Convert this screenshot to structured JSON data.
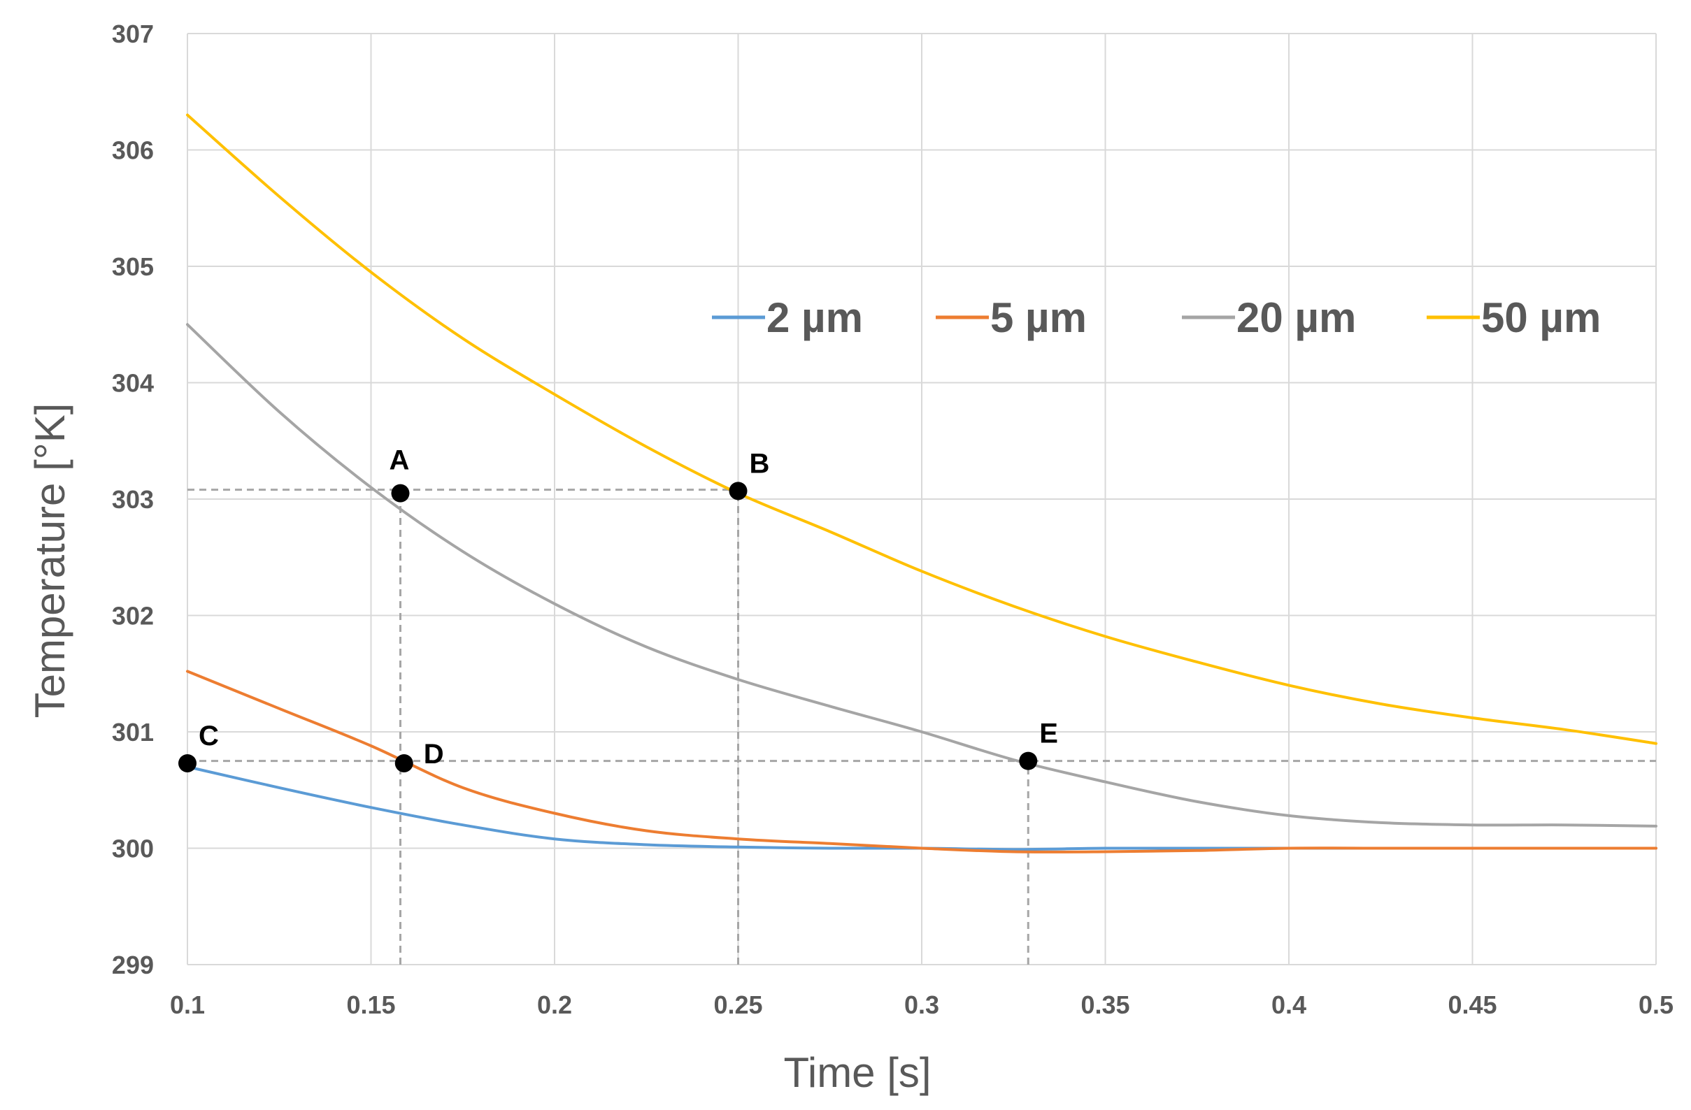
{
  "chart_data": {
    "type": "line",
    "title": "",
    "xlabel": "Time [s]",
    "ylabel": "Temperature  [°K]",
    "xlim": [
      0.1,
      0.5
    ],
    "ylim": [
      299,
      307
    ],
    "grid": true,
    "legend_position": "top-right",
    "x_ticks": [
      "0.1",
      "0.15",
      "0.2",
      "0.25",
      "0.3",
      "0.35",
      "0.4",
      "0.45",
      "0.5"
    ],
    "y_ticks": [
      "299",
      "300",
      "301",
      "302",
      "303",
      "304",
      "305",
      "306",
      "307"
    ],
    "x": [
      0.1,
      0.125,
      0.15,
      0.175,
      0.2,
      0.225,
      0.25,
      0.275,
      0.3,
      0.325,
      0.35,
      0.375,
      0.4,
      0.425,
      0.45,
      0.475,
      0.5
    ],
    "series": [
      {
        "name": "2 µm",
        "color": "#5b9bd5",
        "values": [
          300.7,
          300.52,
          300.35,
          300.2,
          300.08,
          300.03,
          300.01,
          300.0,
          300.0,
          299.99,
          300.0,
          300.0,
          300.0,
          300.0,
          300.0,
          300.0,
          300.0
        ]
      },
      {
        "name": "5 µm",
        "color": "#ed7d31",
        "values": [
          301.52,
          301.2,
          300.88,
          300.52,
          300.3,
          300.15,
          300.08,
          300.04,
          300.0,
          299.97,
          299.97,
          299.98,
          300.0,
          300.0,
          300.0,
          300.0,
          300.0
        ]
      },
      {
        "name": "20 µm",
        "color": "#a5a5a5",
        "values": [
          304.5,
          303.75,
          303.1,
          302.55,
          302.1,
          301.73,
          301.45,
          301.22,
          301.0,
          300.76,
          300.57,
          300.4,
          300.28,
          300.22,
          300.2,
          300.2,
          300.19
        ]
      },
      {
        "name": "50 µm",
        "color": "#ffc000",
        "values": [
          306.3,
          305.6,
          304.95,
          304.38,
          303.9,
          303.45,
          303.05,
          302.72,
          302.38,
          302.08,
          301.82,
          301.6,
          301.4,
          301.24,
          301.12,
          301.02,
          300.9
        ]
      }
    ],
    "annotations": [
      {
        "label": "A",
        "x": 0.158,
        "y": 303.05,
        "label_side": "above"
      },
      {
        "label": "B",
        "x": 0.25,
        "y": 303.07,
        "label_side": "upper-right"
      },
      {
        "label": "C",
        "x": 0.1,
        "y": 300.73,
        "label_side": "upper-right"
      },
      {
        "label": "D",
        "x": 0.159,
        "y": 300.73,
        "label_side": "right"
      },
      {
        "label": "E",
        "x": 0.329,
        "y": 300.75,
        "label_side": "upper-right"
      }
    ],
    "reference_lines": [
      {
        "orientation": "horizontal",
        "y": 303.08,
        "x_from": 0.1,
        "x_to": 0.25
      },
      {
        "orientation": "horizontal",
        "y": 300.75,
        "x_from": 0.1,
        "x_to": 0.5
      },
      {
        "orientation": "vertical",
        "x": 0.158,
        "y_from": 299,
        "y_to": 303.05
      },
      {
        "orientation": "vertical",
        "x": 0.25,
        "y_from": 299,
        "y_to": 303.07
      },
      {
        "orientation": "vertical",
        "x": 0.329,
        "y_from": 299,
        "y_to": 300.75
      }
    ]
  }
}
